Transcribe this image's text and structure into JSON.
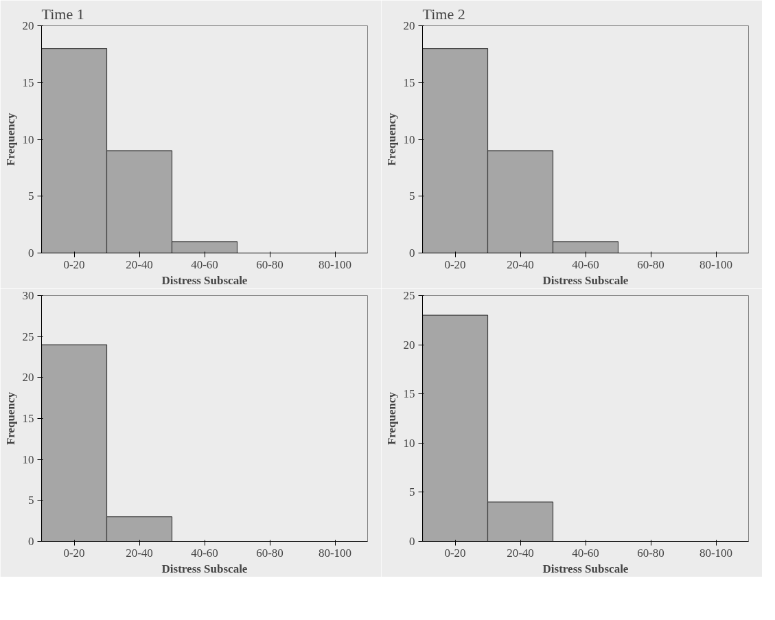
{
  "chart_data": [
    {
      "type": "bar",
      "title": "Time 1",
      "categories": [
        "0-20",
        "20-40",
        "40-60",
        "60-80",
        "80-100"
      ],
      "values": [
        18,
        9,
        1,
        0,
        0
      ],
      "color": "#a6a6a6",
      "xlabel": "Distress Subscale",
      "ylabel": "Frequency",
      "ylim": [
        0,
        20
      ],
      "yticks": [
        0,
        5,
        10,
        15,
        20
      ],
      "grid": false
    },
    {
      "type": "bar",
      "title": "Time 2",
      "categories": [
        "0-20",
        "20-40",
        "40-60",
        "60-80",
        "80-100"
      ],
      "values": [
        18,
        9,
        1,
        0,
        0
      ],
      "color": "#a6a6a6",
      "xlabel": "Distress Subscale",
      "ylabel": "Frequency",
      "ylim": [
        0,
        20
      ],
      "yticks": [
        0,
        5,
        10,
        15,
        20
      ],
      "grid": false
    },
    {
      "type": "bar",
      "categories": [
        "0-20",
        "20-40",
        "40-60",
        "60-80",
        "80-100"
      ],
      "values": [
        24,
        3,
        0,
        0,
        0
      ],
      "color": "#a6a6a6",
      "xlabel": "Distress Subscale",
      "ylabel": "Frequency",
      "ylim": [
        0,
        30
      ],
      "yticks": [
        0,
        5,
        10,
        15,
        20,
        25,
        30
      ],
      "grid": false
    },
    {
      "type": "bar",
      "categories": [
        "0-20",
        "20-40",
        "40-60",
        "60-80",
        "80-100"
      ],
      "values": [
        23,
        4,
        0,
        0,
        0
      ],
      "color": "#a6a6a6",
      "xlabel": "Distress Subscale",
      "ylabel": "Frequency",
      "ylim": [
        0,
        25
      ],
      "yticks": [
        0,
        5,
        10,
        15,
        20,
        25
      ],
      "grid": false
    }
  ]
}
